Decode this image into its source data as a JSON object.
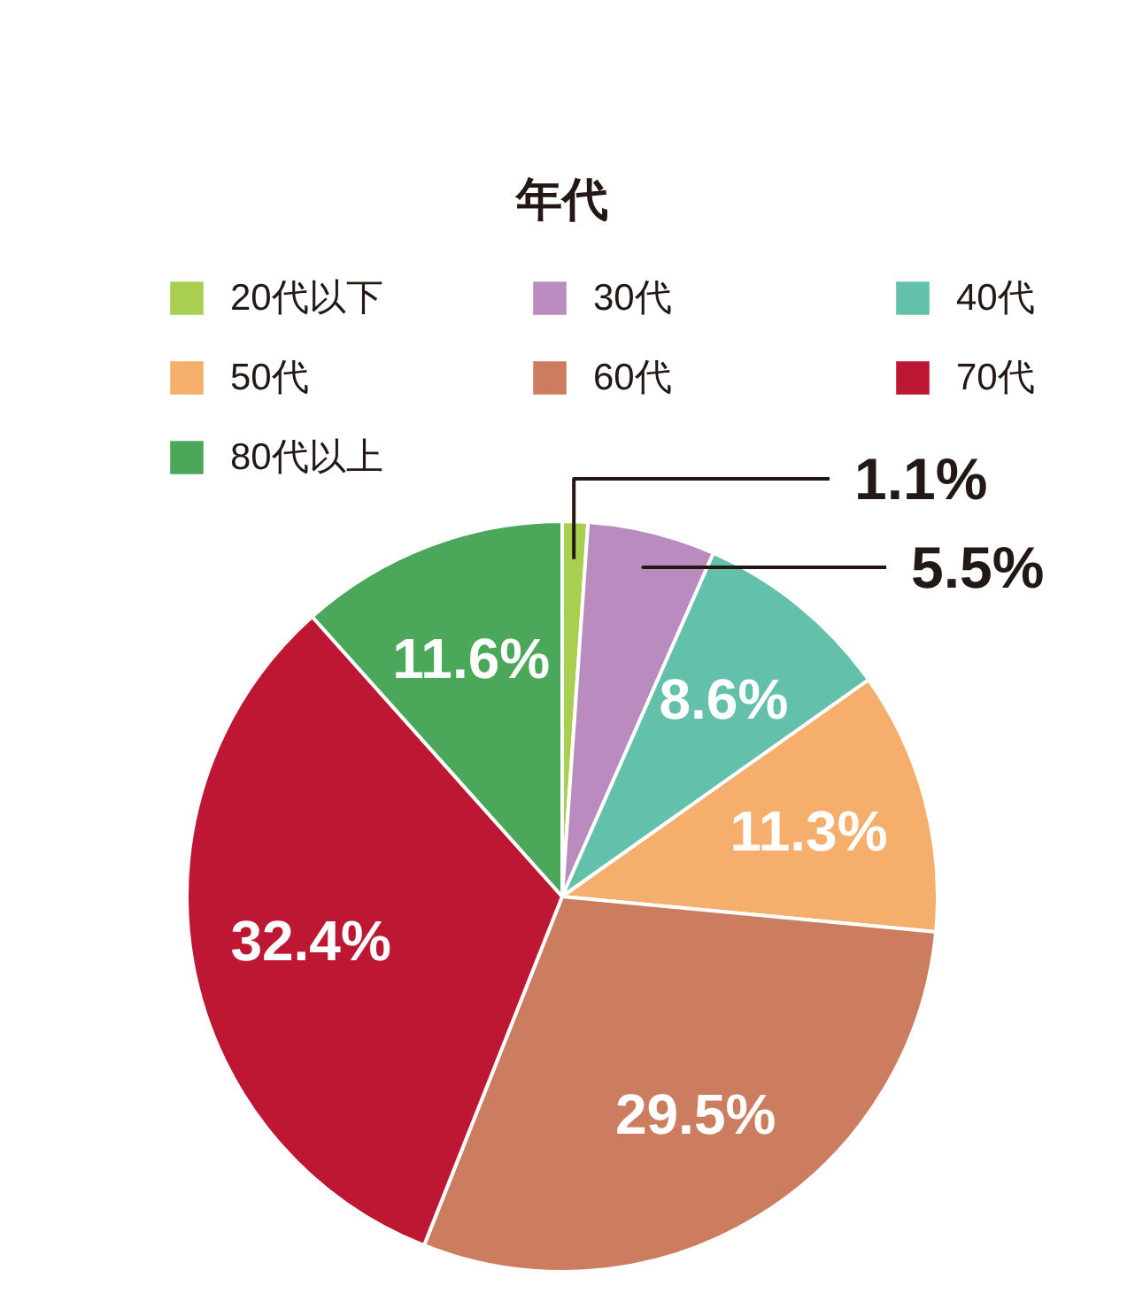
{
  "chart_data": {
    "type": "pie",
    "title": "年代",
    "categories": [
      "20代以下",
      "30代",
      "40代",
      "50代",
      "60代",
      "70代",
      "80代以上"
    ],
    "values": [
      1.1,
      5.5,
      8.6,
      11.3,
      29.5,
      32.4,
      11.6
    ],
    "colors": [
      "#a8cf52",
      "#b98bbf",
      "#63c0ab",
      "#f5ae6b",
      "#cd7d5f",
      "#be1733",
      "#4ba85b"
    ],
    "value_labels": [
      "1.1%",
      "5.5%",
      "8.6%",
      "11.3%",
      "29.5%",
      "32.4%",
      "11.6%"
    ],
    "legend": "top"
  }
}
